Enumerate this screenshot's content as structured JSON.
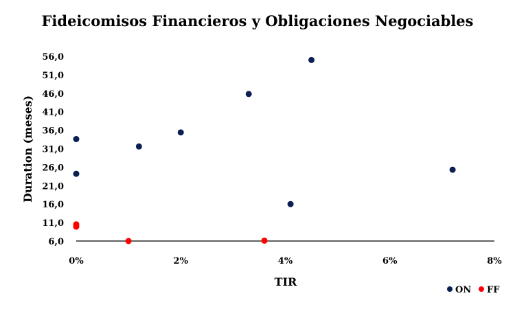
{
  "chart_data": {
    "type": "scatter",
    "title": "Fideicomisos Financieros y Obligaciones Negociables",
    "xlabel": "TIR",
    "ylabel": "Duration (meses)",
    "xlim": [
      0,
      0.08
    ],
    "ylim": [
      6.0,
      56.0
    ],
    "x_ticks": [
      0,
      0.02,
      0.04,
      0.06,
      0.08
    ],
    "x_tick_labels": [
      "0%",
      "2%",
      "4%",
      "6%",
      "8%"
    ],
    "y_ticks": [
      6,
      11,
      16,
      21,
      26,
      31,
      36,
      41,
      46,
      51,
      56
    ],
    "y_tick_labels": [
      "6,0",
      "11,0",
      "16,0",
      "21,0",
      "26,0",
      "31,0",
      "36,0",
      "41,0",
      "46,0",
      "51,0",
      "56,0"
    ],
    "grid": false,
    "legend": "bottom-right",
    "series": [
      {
        "name": "ON",
        "color": "#0b1f52",
        "points": [
          {
            "x": 0.0,
            "y": 33.6
          },
          {
            "x": 0.0,
            "y": 24.2
          },
          {
            "x": 0.012,
            "y": 31.6
          },
          {
            "x": 0.02,
            "y": 35.4
          },
          {
            "x": 0.033,
            "y": 45.8
          },
          {
            "x": 0.041,
            "y": 16.0
          },
          {
            "x": 0.045,
            "y": 55.0
          },
          {
            "x": 0.072,
            "y": 25.3
          }
        ]
      },
      {
        "name": "FF",
        "color": "#ff0000",
        "points": [
          {
            "x": 0.0,
            "y": 10.5
          },
          {
            "x": 0.0,
            "y": 9.9
          },
          {
            "x": 0.01,
            "y": 6.0
          },
          {
            "x": 0.036,
            "y": 6.1
          }
        ]
      }
    ]
  }
}
